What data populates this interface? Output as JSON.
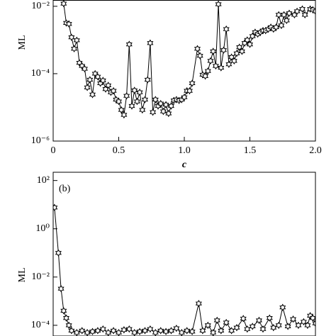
{
  "chart_data": [
    {
      "type": "line",
      "xlabel": "c",
      "ylabel": "ML",
      "log_y": true,
      "xlim": [
        0,
        2
      ],
      "xticks": [
        0,
        0.5,
        {
          "value": 1,
          "label": "1.0"
        },
        1.5,
        {
          "value": 2,
          "label": "2.0"
        }
      ],
      "ylim": [
        1e-06,
        0.015
      ],
      "yticks": [
        {
          "value": 1e-06,
          "label": "10⁻⁶"
        },
        {
          "value": 0.0001,
          "label": "10⁻⁴"
        },
        {
          "value": 0.01,
          "label": "10⁻²"
        }
      ],
      "series": [
        {
          "color": "#000000",
          "x": [
            0.08,
            0.1,
            0.12,
            0.14,
            0.16,
            0.18,
            0.2,
            0.22,
            0.24,
            0.26,
            0.28,
            0.3,
            0.32,
            0.34,
            0.36,
            0.38,
            0.4,
            0.42,
            0.44,
            0.46,
            0.48,
            0.5,
            0.52,
            0.54,
            0.56,
            0.58,
            0.6,
            0.62,
            0.64,
            0.66,
            0.68,
            0.7,
            0.72,
            0.74,
            0.76,
            0.78,
            0.8,
            0.82,
            0.84,
            0.86,
            0.88,
            0.9,
            0.92,
            0.94,
            0.96,
            0.98,
            1.0,
            1.02,
            1.04,
            1.06,
            1.1,
            1.12,
            1.14,
            1.16,
            1.18,
            1.2,
            1.22,
            1.24,
            1.26,
            1.28,
            1.3,
            1.32,
            1.34,
            1.36,
            1.38,
            1.4,
            1.42,
            1.44,
            1.46,
            1.48,
            1.5,
            1.52,
            1.54,
            1.56,
            1.58,
            1.6,
            1.62,
            1.64,
            1.66,
            1.68,
            1.7,
            1.72,
            1.74,
            1.76,
            1.78,
            1.8,
            1.84,
            1.86,
            1.9,
            1.92,
            1.96,
            1.98,
            2.0
          ],
          "values": [
            0.012,
            0.0032,
            0.003,
            0.0012,
            0.00055,
            0.00098,
            0.00021,
            0.00017,
            0.00014,
            3.9e-05,
            6.6e-05,
            2.4e-05,
            0.0001,
            8.1e-05,
            5.2e-05,
            6.3e-05,
            3.5e-05,
            4.5e-05,
            2.8e-05,
            3.1e-05,
            1.7e-05,
            1.5e-05,
            8.4e-06,
            6e-06,
            2.2e-05,
            0.00074,
            1.1e-05,
            3.2e-05,
            1.5e-05,
            2.8e-05,
            8.4e-06,
            1.7e-05,
            6.6e-05,
            0.00081,
            7.2e-06,
            1.7e-05,
            1.1e-05,
            1.3e-05,
            7.6e-06,
            1.2e-05,
            6.6e-06,
            1.1e-05,
            1.6e-05,
            1.7e-05,
            1.6e-05,
            1.7e-05,
            2e-05,
            3.1e-05,
            3.1e-05,
            5.2e-05,
            0.00055,
            0.00034,
            9.3e-05,
            8.5e-05,
            0.00012,
            0.00024,
            0.00046,
            0.00017,
            0.0115,
            0.00015,
            0.0005,
            0.0021,
            0.00019,
            0.00031,
            0.00024,
            0.0004,
            0.00061,
            0.00046,
            0.00081,
            0.001,
            0.00074,
            0.0013,
            0.0017,
            0.0015,
            0.0017,
            0.0019,
            0.0019,
            0.0021,
            0.0024,
            0.0021,
            0.0024,
            0.0056,
            0.0027,
            0.0056,
            0.0038,
            0.0062,
            0.0056,
            0.0071,
            0.0083,
            0.0056,
            0.0083,
            0.0079,
            0.0071
          ]
        }
      ]
    },
    {
      "type": "line",
      "ylabel": "ML",
      "annotation": "(b)",
      "log_y": true,
      "xlim": [
        0,
        2
      ],
      "ylim": [
        3.6e-05,
        220
      ],
      "yticks": [
        {
          "value": 0.0001,
          "label": "10⁻⁴"
        },
        {
          "value": 0.01,
          "label": "10⁻²"
        },
        {
          "value": 1,
          "label": "10⁰"
        },
        {
          "value": 100,
          "label": "10²"
        }
      ],
      "series": [
        {
          "color": "#000000",
          "x": [
            0.01,
            0.04,
            0.06,
            0.08,
            0.1,
            0.12,
            0.14,
            0.18,
            0.22,
            0.26,
            0.3,
            0.34,
            0.38,
            0.42,
            0.46,
            0.5,
            0.54,
            0.58,
            0.62,
            0.66,
            0.7,
            0.74,
            0.78,
            0.82,
            0.86,
            0.9,
            0.94,
            0.98,
            1.02,
            1.06,
            1.11,
            1.14,
            1.18,
            1.22,
            1.25,
            1.28,
            1.32,
            1.36,
            1.4,
            1.45,
            1.48,
            1.52,
            1.57,
            1.6,
            1.65,
            1.68,
            1.72,
            1.75,
            1.79,
            1.83,
            1.87,
            1.91,
            1.94,
            1.96,
            1.98,
            2.0
          ],
          "values": [
            7.6,
            0.1,
            0.0033,
            0.0004,
            0.0002,
            0.0001,
            6e-05,
            5e-05,
            6e-05,
            5e-05,
            5.5e-05,
            6e-05,
            7e-05,
            5e-05,
            6e-05,
            5e-05,
            6.5e-05,
            7e-05,
            5e-05,
            5.5e-05,
            6e-05,
            7e-05,
            5e-05,
            6e-05,
            5.5e-05,
            6e-05,
            7.5e-05,
            5e-05,
            6e-05,
            5.5e-05,
            0.0008,
            6e-05,
            0.0001,
            5e-05,
            0.00016,
            6e-05,
            0.00013,
            6e-05,
            8e-05,
            0.00019,
            7e-05,
            9e-05,
            0.00016,
            7e-05,
            0.0002,
            8e-05,
            0.0001,
            0.00055,
            9e-05,
            0.00018,
            0.0001,
            0.00014,
            0.0001,
            0.00025,
            0.0002,
            0.00012
          ]
        }
      ]
    }
  ]
}
